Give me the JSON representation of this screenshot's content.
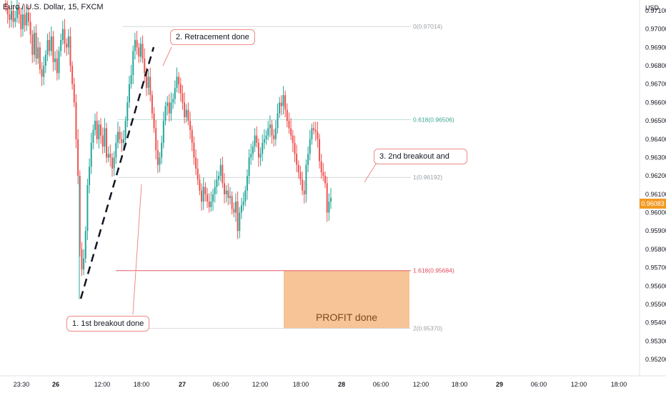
{
  "header": {
    "title": "Euro / U.S. Dollar, 15, FXCM",
    "currency": "USD"
  },
  "annotations": {
    "breakout1": "1. 1st breakout done",
    "retracement": "2. Retracement done",
    "breakout2": "3. 2nd breakout and",
    "profit": "PROFIT done"
  },
  "current_price": "0.96083",
  "chart_data": {
    "type": "candlestick",
    "title": "Euro / U.S. Dollar, 15, FXCM",
    "instrument": "EURUSD",
    "ylim": [
      0.9515,
      0.972
    ],
    "y_ticks": [
      "0.97100",
      "0.97000",
      "0.96900",
      "0.96800",
      "0.96700",
      "0.96600",
      "0.96500",
      "0.96400",
      "0.96300",
      "0.96200",
      "0.96100",
      "0.96000",
      "0.95900",
      "0.95800",
      "0.95700",
      "0.95600",
      "0.95500",
      "0.95400",
      "0.95300",
      "0.95200"
    ],
    "x_ticks": [
      "23:30",
      "26",
      "12:00",
      "18:00",
      "27",
      "06:00",
      "12:00",
      "18:00",
      "28",
      "06:00",
      "12:00",
      "18:00",
      "29",
      "06:00",
      "12:00",
      "18:00"
    ],
    "fibonacci": [
      {
        "level": "0",
        "price": 0.97014,
        "label": "0(0.97014)",
        "color": "#9aa0a6"
      },
      {
        "level": "0.618",
        "price": 0.96506,
        "label": "0.618(0.96506)",
        "color": "#3aa68f"
      },
      {
        "level": "1",
        "price": 0.96192,
        "label": "1(0.96192)",
        "color": "#9aa0a6"
      },
      {
        "level": "1.618",
        "price": 0.95684,
        "label": "1.618(0.95684)",
        "color": "#e04a5a"
      },
      {
        "level": "2",
        "price": 0.9537,
        "label": "2(0.95370)",
        "color": "#9aa0a6"
      }
    ],
    "profit_zone": {
      "from": 0.9537,
      "to": 0.95684
    },
    "last_price": 0.96083,
    "colors": {
      "up": "#26a69a",
      "down": "#ef5350",
      "profit": "#f6c496"
    },
    "series": [
      {
        "name": "EURUSD",
        "close": [
          0.9712,
          0.9708,
          0.9705,
          0.971,
          0.9704,
          0.9706,
          0.9712,
          0.9708,
          0.97,
          0.9708,
          0.9702,
          0.9709,
          0.9704,
          0.9697,
          0.9686,
          0.9698,
          0.9684,
          0.969,
          0.9678,
          0.9674,
          0.968,
          0.9686,
          0.9694,
          0.9688,
          0.9696,
          0.9682,
          0.9684,
          0.9676,
          0.9688,
          0.9694,
          0.97,
          0.9692,
          0.969,
          0.9696,
          0.968,
          0.967,
          0.966,
          0.964,
          0.962,
          0.958,
          0.9569,
          0.9575,
          0.959,
          0.9615,
          0.9625,
          0.9638,
          0.9645,
          0.965,
          0.964,
          0.9648,
          0.9642,
          0.9636,
          0.9646,
          0.963,
          0.9632,
          0.963,
          0.9624,
          0.963,
          0.9638,
          0.9644,
          0.964,
          0.9638,
          0.964,
          0.965,
          0.966,
          0.967,
          0.9675,
          0.9688,
          0.9694,
          0.969,
          0.9685,
          0.9692,
          0.9684,
          0.9676,
          0.9668,
          0.9674,
          0.9664,
          0.9654,
          0.9646,
          0.9634,
          0.9626,
          0.963,
          0.9638,
          0.965,
          0.9658,
          0.966,
          0.9654,
          0.966,
          0.9662,
          0.9668,
          0.9674,
          0.967,
          0.9665,
          0.966,
          0.9652,
          0.9656,
          0.965,
          0.9645,
          0.9638,
          0.963,
          0.9624,
          0.9618,
          0.9612,
          0.9606,
          0.9614,
          0.961,
          0.9606,
          0.9603,
          0.9606,
          0.961,
          0.9614,
          0.9618,
          0.962,
          0.9626,
          0.9616,
          0.961,
          0.9612,
          0.9608,
          0.9609,
          0.9602,
          0.96,
          0.9606,
          0.959,
          0.96,
          0.9604,
          0.9606,
          0.9612,
          0.962,
          0.963,
          0.9632,
          0.9636,
          0.9642,
          0.9638,
          0.963,
          0.9632,
          0.9638,
          0.964,
          0.9642,
          0.9646,
          0.9648,
          0.9642,
          0.964,
          0.9646,
          0.9654,
          0.966,
          0.9658,
          0.9664,
          0.9656,
          0.965,
          0.9646,
          0.9642,
          0.9638,
          0.9632,
          0.9626,
          0.9622,
          0.9618,
          0.9612,
          0.961,
          0.9626,
          0.9632,
          0.964,
          0.9646,
          0.9645,
          0.9644,
          0.964,
          0.9628,
          0.9622,
          0.962,
          0.9616,
          0.96,
          0.9606,
          0.9608
        ]
      }
    ]
  }
}
